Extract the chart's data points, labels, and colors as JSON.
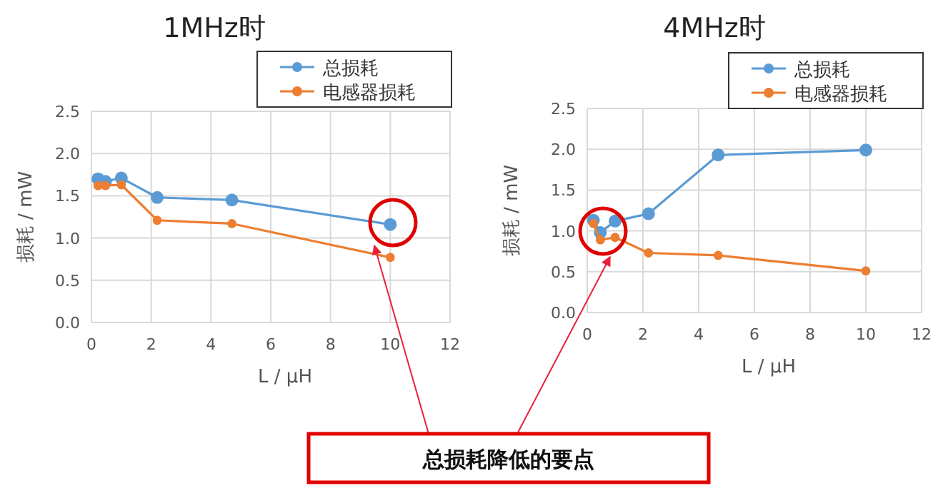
{
  "chart_data": [
    {
      "type": "line",
      "title": "1MHz时",
      "xlabel": "L  /  μH",
      "ylabel": "损耗 / mW",
      "x": [
        0.22,
        0.47,
        1,
        2.2,
        4.7,
        10
      ],
      "xlim": [
        0,
        12
      ],
      "xticks": [
        0,
        2,
        4,
        6,
        8,
        10,
        12
      ],
      "ylim": [
        0,
        2.5
      ],
      "yticks": [
        {
          "value": 0,
          "label": "0.0"
        },
        {
          "value": 0.5,
          "label": "0.5"
        },
        {
          "value": 1,
          "label": "1.0"
        },
        {
          "value": 1.5,
          "label": "1.5"
        },
        {
          "value": 2,
          "label": "2.0"
        },
        {
          "value": 2.5,
          "label": "2.5"
        }
      ],
      "grid": true,
      "legend": "top right",
      "marker": "circle",
      "annotations": [
        "总损耗降低的要点"
      ],
      "series": [
        {
          "name": "总损耗",
          "color": "#5b9bd5",
          "values": [
            1.7,
            1.67,
            1.71,
            1.48,
            1.45,
            1.16
          ]
        },
        {
          "name": "电感器损耗",
          "color": "#ed7d31",
          "values": [
            1.62,
            1.62,
            1.63,
            1.21,
            1.17,
            0.77
          ]
        }
      ]
    },
    {
      "type": "line",
      "title": "4MHz时",
      "xlabel": "L  /  μH",
      "ylabel": "损耗 / mW",
      "x": [
        0.22,
        0.47,
        1,
        2.2,
        4.7,
        10
      ],
      "xlim": [
        0,
        12
      ],
      "xticks": [
        0,
        2,
        4,
        6,
        8,
        10,
        12
      ],
      "ylim": [
        0,
        2.5
      ],
      "yticks": [
        {
          "value": 0,
          "label": "0.0"
        },
        {
          "value": 0.5,
          "label": "0.5"
        },
        {
          "value": 1,
          "label": "1.0"
        },
        {
          "value": 1.5,
          "label": "1.5"
        },
        {
          "value": 2,
          "label": "2.0"
        },
        {
          "value": 2.5,
          "label": "2.5"
        }
      ],
      "grid": true,
      "legend": "top right",
      "marker": "circle",
      "series": [
        {
          "name": "总损耗",
          "color": "#5b9bd5",
          "values": [
            1.13,
            0.98,
            1.12,
            1.21,
            1.93,
            1.99
          ]
        },
        {
          "name": "电感器损耗",
          "color": "#ed7d31",
          "values": [
            1.09,
            0.89,
            0.92,
            0.73,
            0.7,
            0.51
          ]
        }
      ]
    }
  ]
}
